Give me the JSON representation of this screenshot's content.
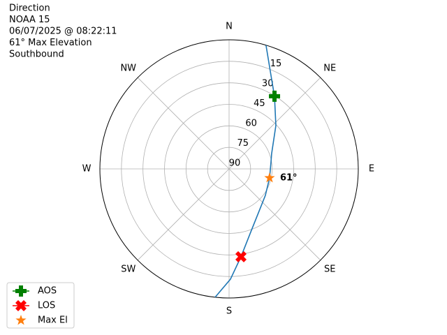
{
  "chart_data": {
    "type": "polar",
    "title_lines": [
      "Direction",
      "NOAA 15",
      "06/07/2025 @ 08:22:11",
      "61° Max Elevation",
      "Southbound"
    ],
    "rlim": [
      90,
      0
    ],
    "rticks": [
      15,
      30,
      45,
      60,
      75,
      90
    ],
    "thetaticks": [
      {
        "value": 0,
        "label": "N"
      },
      {
        "value": 45,
        "label": "NE"
      },
      {
        "value": 90,
        "label": "E"
      },
      {
        "value": 135,
        "label": "SE"
      },
      {
        "value": 180,
        "label": "S"
      },
      {
        "value": 225,
        "label": "SW"
      },
      {
        "value": 270,
        "label": "W"
      },
      {
        "value": 315,
        "label": "NW"
      }
    ],
    "grid": true,
    "legend": "lower left",
    "series": [
      {
        "color": "#1f77b4",
        "marker": "line",
        "x": [
          16.6,
          26.9,
          32,
          47.2,
          70.2,
          80.5,
          102.6,
          126.2,
          142.8,
          160,
          172.3,
          179.3,
          186.2
        ],
        "values": [
          0,
          23.4,
          30.3,
          45.6,
          58.5,
          60.4,
          61.1,
          58.7,
          54.6,
          44.5,
          28.2,
          13.1,
          0
        ]
      },
      {
        "name": "AOS",
        "color": "#008000",
        "marker": "plus",
        "x": [
          32
        ],
        "values": [
          30.3
        ]
      },
      {
        "name": "LOS",
        "color": "#ff0000",
        "marker": "x",
        "x": [
          172.3
        ],
        "values": [
          28.2
        ]
      },
      {
        "name": "Max El",
        "color": "#ff7f0e",
        "marker": "star",
        "x": [
          102.6
        ],
        "values": [
          61.1
        ],
        "value_labels": [
          "61°"
        ]
      }
    ]
  }
}
